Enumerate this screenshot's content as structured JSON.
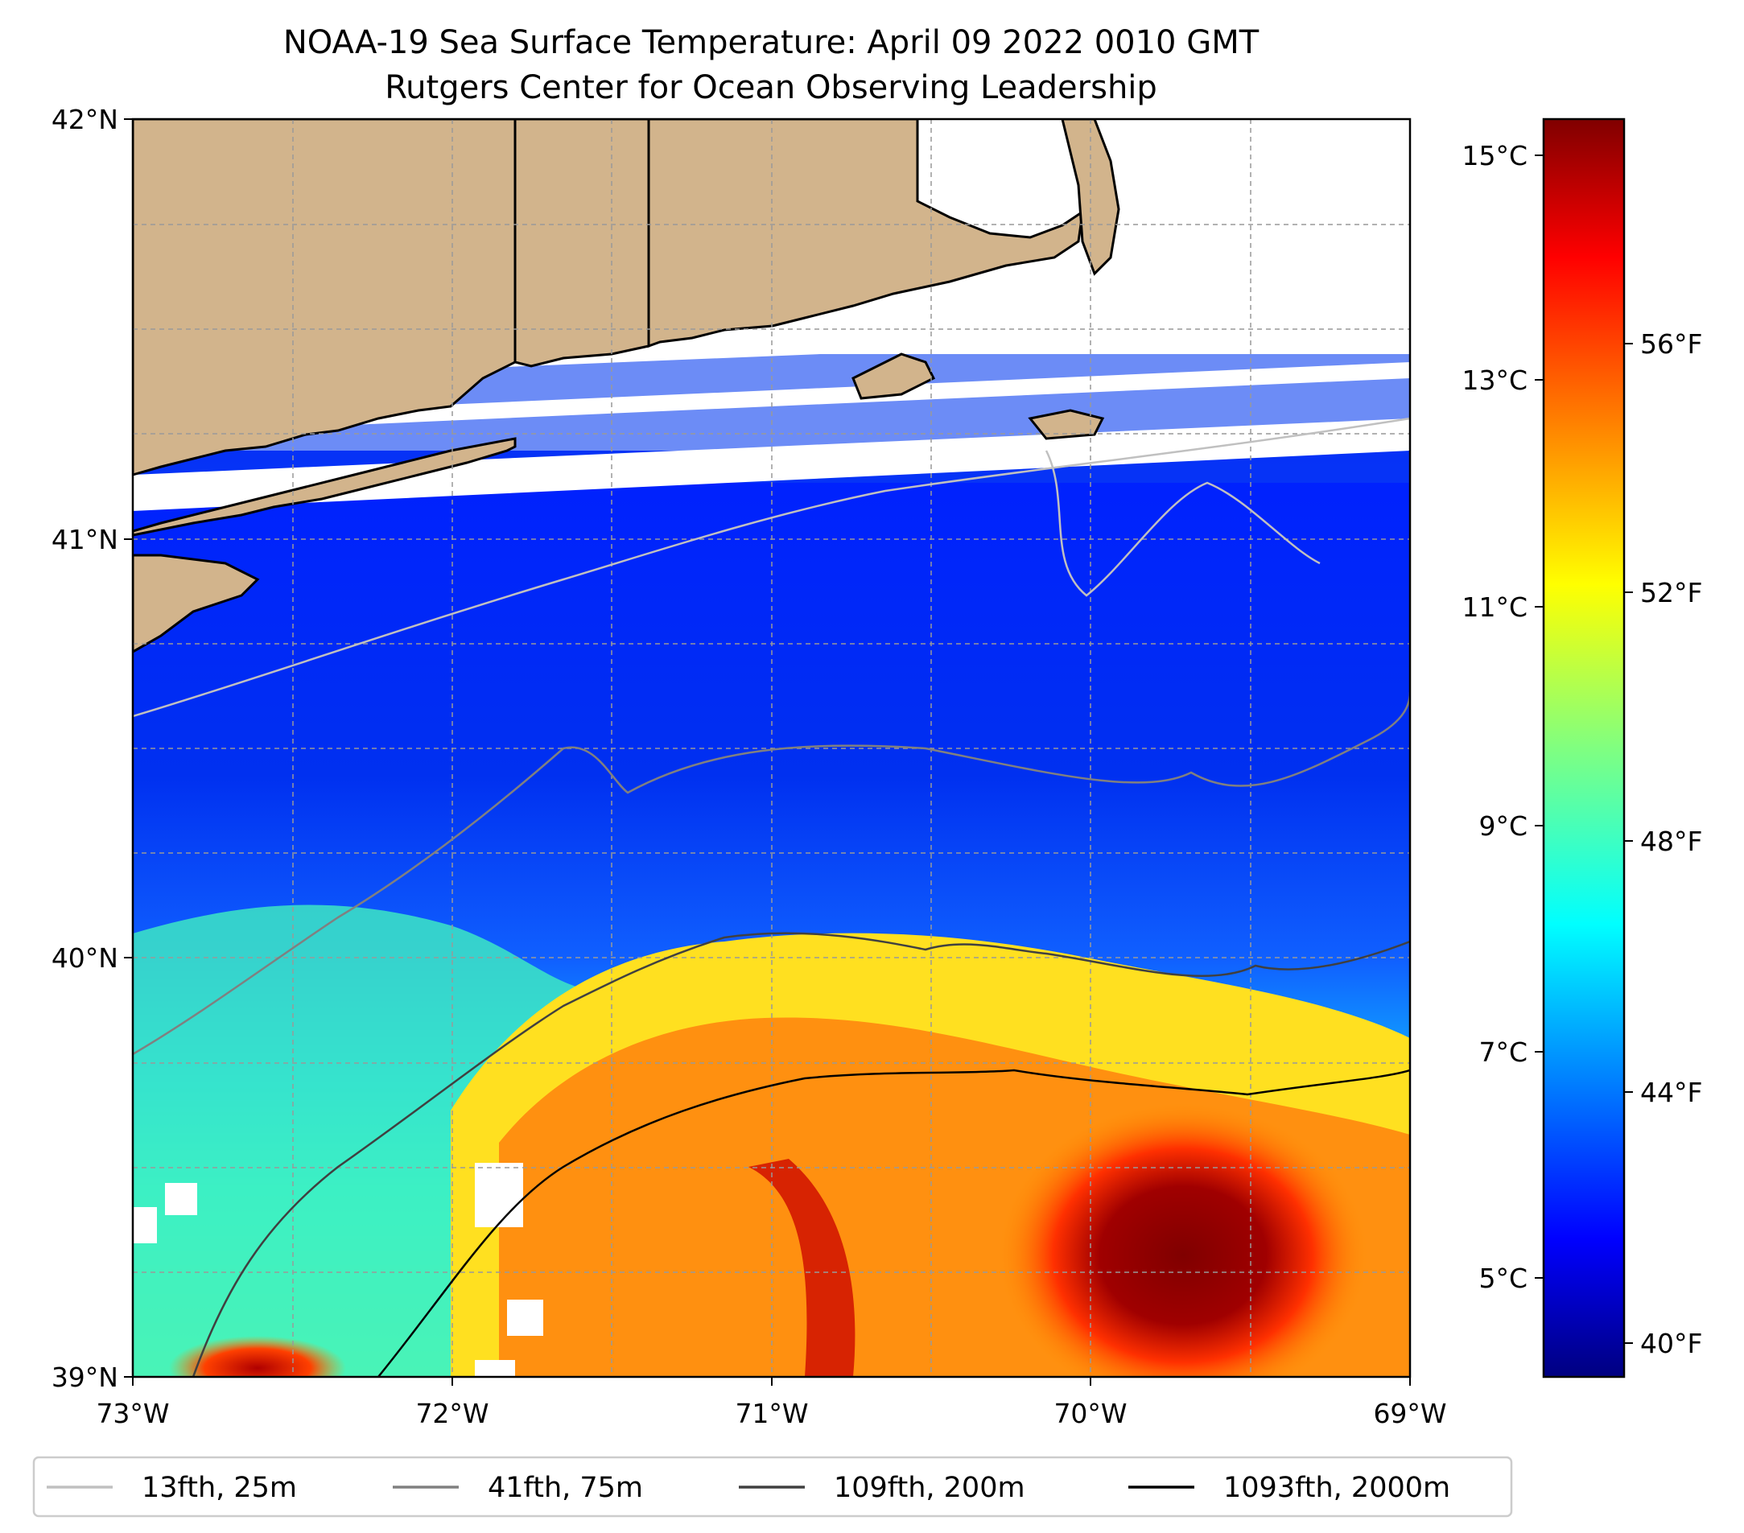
{
  "title": "NOAA-19 Sea Surface Temperature: April 09 2022 0010 GMT",
  "subtitle": "Rutgers Center for Ocean Observing Leadership",
  "map": {
    "extent": {
      "lon_min": -73,
      "lon_max": -69,
      "lat_min": 39,
      "lat_max": 42
    },
    "x_ticks": [
      {
        "lon": -73,
        "label": "73°W"
      },
      {
        "lon": -72,
        "label": "72°W"
      },
      {
        "lon": -71,
        "label": "71°W"
      },
      {
        "lon": -70,
        "label": "70°W"
      },
      {
        "lon": -69,
        "label": "69°W"
      }
    ],
    "y_ticks": [
      {
        "lat": 42,
        "label": "42°N"
      },
      {
        "lat": 41,
        "label": "41°N"
      },
      {
        "lat": 40,
        "label": "40°N"
      },
      {
        "lat": 39,
        "label": "39°N"
      }
    ],
    "land_color": "#d2b48c",
    "grid": true,
    "field": "sea surface temperature"
  },
  "colorbar": {
    "colormap": "jet",
    "range_c": [
      4.3,
      15.4
    ],
    "celsius_ticks": [
      {
        "value": 5,
        "label": "5°C"
      },
      {
        "value": 7,
        "label": "7°C"
      },
      {
        "value": 9,
        "label": "9°C"
      },
      {
        "value": 11,
        "label": "11°C"
      },
      {
        "value": 13,
        "label": "13°C"
      },
      {
        "value": 15,
        "label": "15°C"
      }
    ],
    "fahrenheit_ticks": [
      {
        "value": 40,
        "label": "40°F"
      },
      {
        "value": 44,
        "label": "44°F"
      },
      {
        "value": 48,
        "label": "48°F"
      },
      {
        "value": 52,
        "label": "52°F"
      },
      {
        "value": 56,
        "label": "56°F"
      }
    ]
  },
  "legend": {
    "placement": "bottom",
    "entries": [
      {
        "label": "13fth, 25m",
        "color": "#c0c0c0"
      },
      {
        "label": "41fth, 75m",
        "color": "#808080"
      },
      {
        "label": "109fth, 200m",
        "color": "#404040"
      },
      {
        "label": "1093fth, 2000m",
        "color": "#000000"
      }
    ]
  }
}
